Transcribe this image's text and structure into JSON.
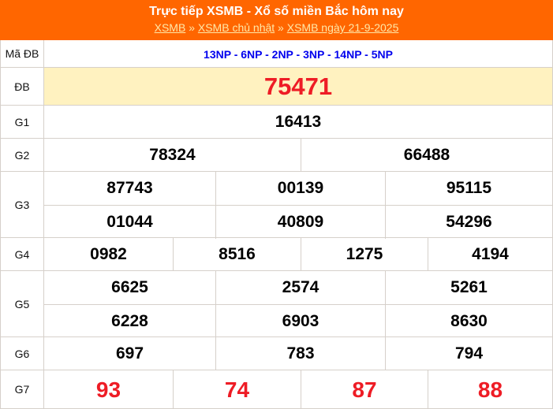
{
  "header": {
    "title": "Trực tiếp XSMB - Xổ số miền Bắc hôm nay",
    "breadcrumb": [
      {
        "label": "XSMB"
      },
      {
        "label": "XSMB chủ nhật"
      },
      {
        "label": "XSMB ngày 21-9-2025"
      }
    ],
    "separator": "»"
  },
  "colors": {
    "header_bg": "#ff6600",
    "special": "#ee1c25",
    "code": "#0000ee",
    "special_row_bg": "#fff2c0"
  },
  "rows": [
    {
      "label": "Mã ĐB",
      "values": [
        "13NP - 6NP - 2NP - 3NP - 14NP - 5NP"
      ]
    },
    {
      "label": "ĐB",
      "values": [
        "75471"
      ]
    },
    {
      "label": "G1",
      "values": [
        "16413"
      ]
    },
    {
      "label": "G2",
      "values": [
        "78324",
        "66488"
      ]
    },
    {
      "label": "G3",
      "values": [
        "87743",
        "00139",
        "95115",
        "01044",
        "40809",
        "54296"
      ]
    },
    {
      "label": "G4",
      "values": [
        "0982",
        "8516",
        "1275",
        "4194"
      ]
    },
    {
      "label": "G5",
      "values": [
        "6625",
        "2574",
        "5261",
        "6228",
        "6903",
        "8630"
      ]
    },
    {
      "label": "G6",
      "values": [
        "697",
        "783",
        "794"
      ]
    },
    {
      "label": "G7",
      "values": [
        "93",
        "74",
        "87",
        "88"
      ]
    }
  ]
}
